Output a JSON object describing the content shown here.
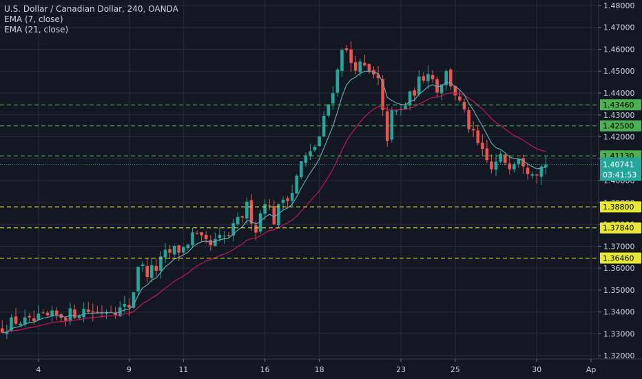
{
  "legend": {
    "symbol": "U.S. Dollar / Canadian Dollar, 240, OANDA",
    "ema_fast": "EMA (7, close)",
    "ema_slow": "EMA (21, close)"
  },
  "colors": {
    "background": "#131722",
    "grid": "#2a2e39",
    "text": "#d1d4dc",
    "up": "#26a69a",
    "down": "#ef5350",
    "ema_fast": "#5fa8b5",
    "ema_slow": "#c2185b",
    "green_line": "#4caf50",
    "yellow_line": "#e7e734",
    "current_price": "#26a69a"
  },
  "chart_data": {
    "type": "candlestick",
    "title": "U.S. Dollar / Canadian Dollar, 240, OANDA",
    "ylim": [
      1.3185,
      1.4825
    ],
    "y_ticks": [
      "1.32000",
      "1.33000",
      "1.34000",
      "1.35000",
      "1.36000",
      "1.37000",
      "1.38000",
      "1.39000",
      "1.40000",
      "1.41000",
      "1.42000",
      "1.43000",
      "1.44000",
      "1.45000",
      "1.46000",
      "1.47000",
      "1.48000"
    ],
    "x_ticks": [
      "4",
      "9",
      "11",
      "16",
      "18",
      "23",
      "25",
      "30",
      "Ap"
    ],
    "bar_count": 132,
    "x_tick_bars": [
      8,
      28,
      40,
      58,
      70,
      88,
      100,
      118,
      130
    ],
    "grid": true,
    "horizontal_lines": [
      {
        "price": 1.4346,
        "label": "1.43460",
        "style": "green"
      },
      {
        "price": 1.425,
        "label": "1.42500",
        "style": "green"
      },
      {
        "price": 1.4113,
        "label": "1.41130",
        "style": "green"
      },
      {
        "price": 1.388,
        "label": "1.38800",
        "style": "yellow"
      },
      {
        "price": 1.3784,
        "label": "1.37840",
        "style": "yellow"
      },
      {
        "price": 1.3646,
        "label": "1.36460",
        "style": "yellow"
      }
    ],
    "current_price": {
      "price": 1.40741,
      "label": "1.40741",
      "countdown": "03:41:53"
    },
    "anchors": [
      [
        0,
        1.333
      ],
      [
        3,
        1.336
      ],
      [
        6,
        1.335
      ],
      [
        9,
        1.337
      ],
      [
        12,
        1.338
      ],
      [
        15,
        1.339
      ],
      [
        18,
        1.341
      ],
      [
        21,
        1.34
      ],
      [
        24,
        1.342
      ],
      [
        26,
        1.341
      ],
      [
        28,
        1.343
      ],
      [
        29,
        1.35
      ],
      [
        30,
        1.362
      ],
      [
        32,
        1.358
      ],
      [
        34,
        1.36
      ],
      [
        36,
        1.366
      ],
      [
        38,
        1.368
      ],
      [
        40,
        1.369
      ],
      [
        42,
        1.375
      ],
      [
        44,
        1.372
      ],
      [
        46,
        1.37
      ],
      [
        48,
        1.373
      ],
      [
        50,
        1.375
      ],
      [
        52,
        1.381
      ],
      [
        54,
        1.388
      ],
      [
        56,
        1.378
      ],
      [
        58,
        1.392
      ],
      [
        60,
        1.382
      ],
      [
        62,
        1.392
      ],
      [
        64,
        1.395
      ],
      [
        66,
        1.408
      ],
      [
        68,
        1.412
      ],
      [
        70,
        1.42
      ],
      [
        72,
        1.435
      ],
      [
        74,
        1.45
      ],
      [
        75,
        1.462
      ],
      [
        77,
        1.454
      ],
      [
        80,
        1.451
      ],
      [
        83,
        1.445
      ],
      [
        84,
        1.43
      ],
      [
        85,
        1.42
      ],
      [
        86,
        1.43
      ],
      [
        88,
        1.432
      ],
      [
        90,
        1.438
      ],
      [
        92,
        1.445
      ],
      [
        94,
        1.451
      ],
      [
        96,
        1.442
      ],
      [
        98,
        1.449
      ],
      [
        100,
        1.44
      ],
      [
        102,
        1.43
      ],
      [
        104,
        1.42
      ],
      [
        106,
        1.412
      ],
      [
        108,
        1.405
      ],
      [
        110,
        1.41
      ],
      [
        112,
        1.408
      ],
      [
        114,
        1.412
      ],
      [
        116,
        1.406
      ],
      [
        118,
        1.405
      ],
      [
        120,
        1.4074
      ]
    ],
    "series": [
      {
        "name": "EMA (7, close)",
        "type": "line"
      },
      {
        "name": "EMA (21, close)",
        "type": "line"
      }
    ]
  }
}
